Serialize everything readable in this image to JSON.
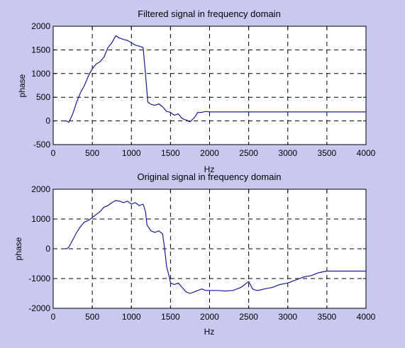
{
  "chart_data": [
    {
      "type": "line",
      "title": "Filtered signal in frequency domain",
      "xlabel": "Hz",
      "ylabel": "phase",
      "xlim": [
        0,
        4000
      ],
      "ylim": [
        -500,
        2000
      ],
      "xticks": [
        0,
        500,
        1000,
        1500,
        2000,
        2500,
        3000,
        3500,
        4000
      ],
      "yticks": [
        -500,
        0,
        500,
        1000,
        1500,
        2000
      ],
      "grid": true,
      "color": "#1a1a9c",
      "series": [
        {
          "x": [
            150,
            170,
            200,
            250,
            300,
            350,
            400,
            450,
            500,
            550,
            600,
            650,
            700,
            750,
            800,
            850,
            900,
            950,
            1000,
            1050,
            1100,
            1150,
            1180,
            1210,
            1250,
            1300,
            1350,
            1400,
            1450,
            1500,
            1550,
            1600,
            1650,
            1700,
            1750,
            1800,
            1850,
            1900,
            1950,
            2000,
            2500,
            3000,
            3500,
            4000
          ],
          "y": [
            0,
            0,
            -30,
            150,
            400,
            600,
            750,
            950,
            1100,
            1200,
            1250,
            1350,
            1550,
            1650,
            1800,
            1750,
            1720,
            1700,
            1650,
            1600,
            1580,
            1550,
            1000,
            400,
            350,
            330,
            360,
            300,
            200,
            180,
            120,
            150,
            50,
            20,
            -20,
            60,
            180,
            180,
            200,
            190,
            190,
            190,
            190,
            190
          ]
        }
      ]
    },
    {
      "type": "line",
      "title": "Original signal in frequency domain",
      "xlabel": "Hz",
      "ylabel": "phase",
      "xlim": [
        0,
        4000
      ],
      "ylim": [
        -2000,
        2000
      ],
      "xticks": [
        0,
        500,
        1000,
        1500,
        2000,
        2500,
        3000,
        3500,
        4000
      ],
      "yticks": [
        -2000,
        -1000,
        0,
        1000,
        2000
      ],
      "grid": true,
      "color": "#1a1a9c",
      "series": [
        {
          "x": [
            150,
            170,
            200,
            250,
            300,
            350,
            400,
            450,
            500,
            550,
            600,
            650,
            700,
            750,
            800,
            850,
            900,
            950,
            1000,
            1050,
            1100,
            1150,
            1180,
            1200,
            1250,
            1300,
            1350,
            1400,
            1420,
            1450,
            1480,
            1500,
            1550,
            1600,
            1650,
            1700,
            1750,
            1800,
            1850,
            1900,
            1950,
            2000,
            2100,
            2200,
            2300,
            2400,
            2450,
            2500,
            2550,
            2600,
            2650,
            2700,
            2800,
            2900,
            3000,
            3100,
            3200,
            3300,
            3400,
            3500,
            3550,
            4000
          ],
          "y": [
            0,
            0,
            50,
            300,
            550,
            750,
            900,
            950,
            1050,
            1150,
            1250,
            1400,
            1450,
            1550,
            1620,
            1600,
            1550,
            1600,
            1500,
            1550,
            1450,
            1500,
            1250,
            800,
            600,
            550,
            600,
            500,
            100,
            -600,
            -900,
            -1150,
            -1200,
            -1150,
            -1300,
            -1450,
            -1500,
            -1450,
            -1400,
            -1350,
            -1400,
            -1400,
            -1400,
            -1420,
            -1400,
            -1300,
            -1200,
            -1100,
            -1350,
            -1400,
            -1380,
            -1350,
            -1300,
            -1200,
            -1150,
            -1050,
            -950,
            -900,
            -800,
            -750,
            -750,
            -750
          ]
        }
      ]
    }
  ]
}
